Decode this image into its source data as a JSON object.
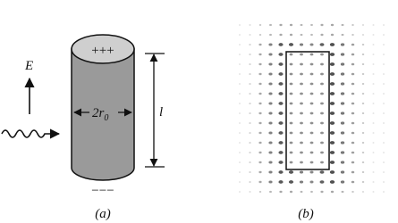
{
  "panel_a": {
    "top_charge": "+++",
    "field_label": "E",
    "diameter_label": "2r",
    "diameter_subscript": "0",
    "length_label": "l",
    "bottom_charge": "−−−",
    "caption": "(a)"
  },
  "panel_b": {
    "caption": "(b)"
  }
}
